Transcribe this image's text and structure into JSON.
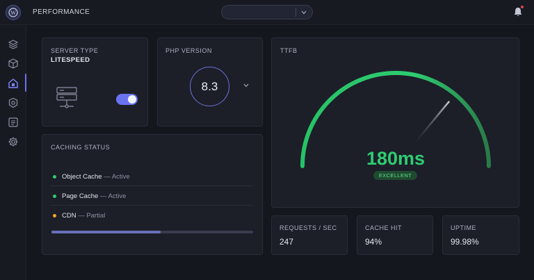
{
  "app": {
    "title": "PERFORMANCE"
  },
  "header": {
    "select_value": ""
  },
  "server": {
    "label": "SERVER TYPE",
    "value": "LITESPEED",
    "toggle_on": true
  },
  "php": {
    "label": "PHP VERSION",
    "value": "8.3"
  },
  "caching": {
    "label": "CACHING STATUS",
    "items": [
      {
        "name": "Object Cache",
        "status": " — Active",
        "color": "#2ecc71"
      },
      {
        "name": "Page Cache",
        "status": " — Active",
        "color": "#2ecc71"
      },
      {
        "name": "CDN",
        "status": " — Partial",
        "color": "#f5a623"
      }
    ],
    "progress_fraction": 0.54
  },
  "ttfb": {
    "label": "TTFB",
    "value": "180ms",
    "badge": "EXCELLENT",
    "gauge_fraction": 0.72
  },
  "stats": [
    {
      "label": "REQUESTS / SEC",
      "value": "247"
    },
    {
      "label": "CACHE HIT",
      "value": "94%"
    },
    {
      "label": "UPTIME",
      "value": "99.98%"
    }
  ],
  "colors": {
    "accent": "#6b72f0",
    "success": "#2ecc71",
    "warning": "#f5a623",
    "alert": "#e0414b"
  },
  "icons": {
    "sidebar": [
      "layers-icon",
      "box-icon",
      "dashboard-icon",
      "shield-icon",
      "list-icon",
      "settings-icon"
    ],
    "header": [
      "wordpress-logo-icon",
      "chevron-down-icon",
      "bell-icon"
    ],
    "server": "server-icon"
  }
}
